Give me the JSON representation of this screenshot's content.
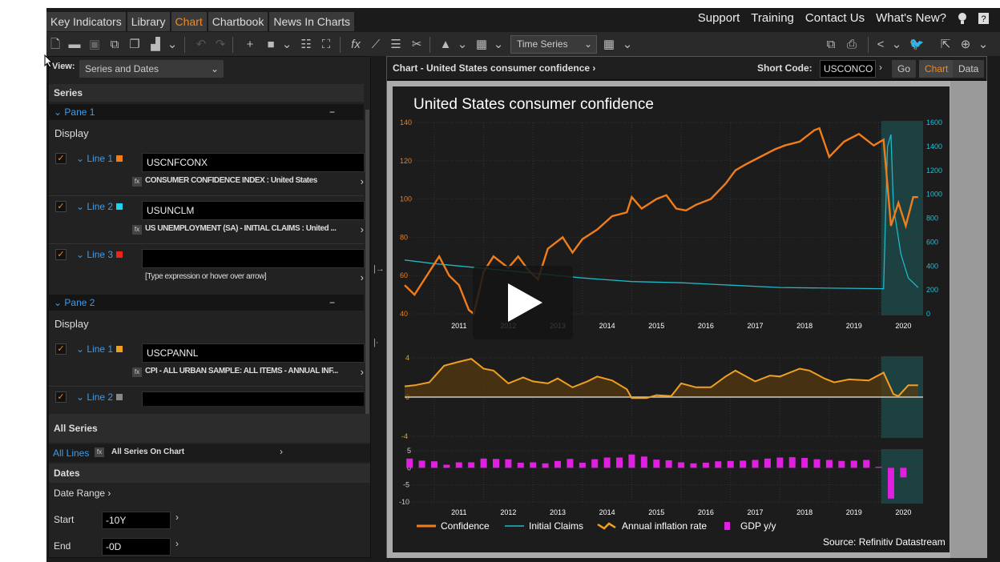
{
  "tabs": [
    "Key Indicators",
    "Library",
    "Chart",
    "Chartbook",
    "News In Charts"
  ],
  "active_tab": "Chart",
  "top_links": [
    "Support",
    "Training",
    "Contact Us",
    "What's New?"
  ],
  "toolbar": {
    "series_type": "Time Series"
  },
  "left": {
    "view_label": "View:",
    "view_value": "Series and Dates",
    "series_header": "Series",
    "panes": [
      {
        "label": "Pane 1",
        "display": "Display",
        "lines": [
          {
            "label": "Line 1",
            "color": "#f07d1a",
            "code": "USCNFCONX",
            "desc": "CONSUMER CONFIDENCE INDEX : United States"
          },
          {
            "label": "Line 2",
            "color": "#22d0f0",
            "code": "USUNCLM",
            "desc": "US UNEMPLOYMENT (SA) - INITIAL CLAIMS : United ..."
          },
          {
            "label": "Line 3",
            "color": "#e8261a",
            "code": "",
            "desc": "[Type expression or hover over arrow]"
          }
        ]
      },
      {
        "label": "Pane 2",
        "display": "Display",
        "lines": [
          {
            "label": "Line 1",
            "color": "#f0a020",
            "code": "USCPANNL",
            "desc": "CPI - ALL URBAN SAMPLE: ALL ITEMS - ANNUAL INF..."
          },
          {
            "label": "Line 2",
            "color": "#888888",
            "code": ""
          }
        ]
      }
    ],
    "all_series_header": "All Series",
    "all_lines": "All Lines",
    "all_series_desc": "All Series On Chart",
    "dates_header": "Dates",
    "date_range": "Date Range",
    "start_label": "Start",
    "start_value": "-10Y",
    "end_label": "End",
    "end_value": "-0D"
  },
  "right": {
    "title": "Chart - United States consumer confidence",
    "short_code_label": "Short Code:",
    "short_code": "USCONCO",
    "go": "Go",
    "chart": "Chart",
    "data": "Data"
  },
  "chart_data": {
    "type": "line",
    "title": "United States consumer confidence",
    "source": "Source: Refinitiv Datastream",
    "x_ticks": [
      "2011",
      "2012",
      "2013",
      "2014",
      "2015",
      "2016",
      "2017",
      "2018",
      "2019",
      "2020"
    ],
    "legend": [
      "Confidence",
      "Initial Claims",
      "Annual inflation rate",
      "GDP y/y"
    ],
    "pane1": {
      "ylim_left": [
        40,
        140
      ],
      "left_ticks": [
        "140",
        "120",
        "100",
        "80",
        "60",
        "40"
      ],
      "ylim_right": [
        0,
        1600
      ],
      "right_ticks": [
        "1600",
        "1400",
        "1200",
        "1000",
        "800",
        "600",
        "400",
        "200",
        "0"
      ],
      "confidence": [
        [
          2010.4,
          55
        ],
        [
          2010.6,
          50
        ],
        [
          2010.8,
          58
        ],
        [
          2011.1,
          70
        ],
        [
          2011.3,
          60
        ],
        [
          2011.5,
          55
        ],
        [
          2011.7,
          42
        ],
        [
          2011.8,
          40
        ],
        [
          2012.0,
          62
        ],
        [
          2012.2,
          70
        ],
        [
          2012.5,
          64
        ],
        [
          2012.7,
          70
        ],
        [
          2012.9,
          63
        ],
        [
          2013.1,
          58
        ],
        [
          2013.3,
          74
        ],
        [
          2013.6,
          80
        ],
        [
          2013.8,
          72
        ],
        [
          2014.0,
          79
        ],
        [
          2014.3,
          84
        ],
        [
          2014.6,
          91
        ],
        [
          2014.9,
          93
        ],
        [
          2015.0,
          101
        ],
        [
          2015.2,
          95
        ],
        [
          2015.5,
          100
        ],
        [
          2015.7,
          102
        ],
        [
          2015.9,
          95
        ],
        [
          2016.1,
          94
        ],
        [
          2016.3,
          97
        ],
        [
          2016.6,
          100
        ],
        [
          2016.9,
          108
        ],
        [
          2017.1,
          115
        ],
        [
          2017.3,
          118
        ],
        [
          2017.6,
          122
        ],
        [
          2017.9,
          126
        ],
        [
          2018.1,
          128
        ],
        [
          2018.4,
          130
        ],
        [
          2018.7,
          136
        ],
        [
          2018.8,
          137
        ],
        [
          2019.0,
          122
        ],
        [
          2019.3,
          130
        ],
        [
          2019.6,
          134
        ],
        [
          2019.9,
          128
        ],
        [
          2020.1,
          131
        ],
        [
          2020.25,
          86
        ],
        [
          2020.4,
          98
        ],
        [
          2020.55,
          86
        ],
        [
          2020.7,
          101
        ],
        [
          2020.8,
          101
        ]
      ],
      "initial_claims": [
        [
          2010.4,
          450
        ],
        [
          2011.0,
          420
        ],
        [
          2012.0,
          380
        ],
        [
          2013.0,
          340
        ],
        [
          2014.0,
          300
        ],
        [
          2015.0,
          270
        ],
        [
          2016.0,
          260
        ],
        [
          2017.0,
          240
        ],
        [
          2018.0,
          220
        ],
        [
          2019.0,
          215
        ],
        [
          2020.1,
          210
        ],
        [
          2020.18,
          1400
        ],
        [
          2020.25,
          1500
        ],
        [
          2020.3,
          900
        ],
        [
          2020.45,
          500
        ],
        [
          2020.6,
          300
        ],
        [
          2020.8,
          220
        ]
      ]
    },
    "pane2": {
      "ylim": [
        -4,
        4
      ],
      "ticks": [
        "4",
        "0",
        "-4"
      ],
      "inflation": [
        [
          2010.4,
          1.1
        ],
        [
          2010.6,
          1.2
        ],
        [
          2010.9,
          1.5
        ],
        [
          2011.2,
          3.2
        ],
        [
          2011.5,
          3.6
        ],
        [
          2011.75,
          3.9
        ],
        [
          2012.0,
          2.9
        ],
        [
          2012.2,
          2.7
        ],
        [
          2012.5,
          1.4
        ],
        [
          2012.8,
          2.0
        ],
        [
          2013.0,
          1.6
        ],
        [
          2013.3,
          1.4
        ],
        [
          2013.5,
          1.9
        ],
        [
          2013.8,
          1.0
        ],
        [
          2014.1,
          1.6
        ],
        [
          2014.3,
          2.1
        ],
        [
          2014.6,
          1.7
        ],
        [
          2014.9,
          0.8
        ],
        [
          2015.0,
          -0.1
        ],
        [
          2015.3,
          -0.1
        ],
        [
          2015.5,
          0.2
        ],
        [
          2015.8,
          0.1
        ],
        [
          2016.0,
          1.4
        ],
        [
          2016.3,
          1.0
        ],
        [
          2016.6,
          1.0
        ],
        [
          2016.9,
          2.1
        ],
        [
          2017.1,
          2.7
        ],
        [
          2017.5,
          1.6
        ],
        [
          2017.8,
          2.2
        ],
        [
          2018.0,
          2.1
        ],
        [
          2018.4,
          2.9
        ],
        [
          2018.6,
          2.7
        ],
        [
          2018.9,
          1.9
        ],
        [
          2019.1,
          1.5
        ],
        [
          2019.4,
          1.8
        ],
        [
          2019.8,
          1.7
        ],
        [
          2020.1,
          2.5
        ],
        [
          2020.3,
          0.3
        ],
        [
          2020.4,
          0.1
        ],
        [
          2020.6,
          1.2
        ],
        [
          2020.8,
          1.2
        ]
      ]
    },
    "pane3": {
      "ylim": [
        -10,
        5
      ],
      "ticks": [
        "5",
        "0",
        "-5",
        "-10"
      ],
      "gdp_x": [
        2010.5,
        2010.75,
        2011.0,
        2011.25,
        2011.5,
        2011.75,
        2012.0,
        2012.25,
        2012.5,
        2012.75,
        2013.0,
        2013.25,
        2013.5,
        2013.75,
        2014.0,
        2014.25,
        2014.5,
        2014.75,
        2015.0,
        2015.25,
        2015.5,
        2015.75,
        2016.0,
        2016.25,
        2016.5,
        2016.75,
        2017.0,
        2017.25,
        2017.5,
        2017.75,
        2018.0,
        2018.25,
        2018.5,
        2018.75,
        2019.0,
        2019.25,
        2019.5,
        2019.75,
        2020.0,
        2020.25,
        2020.5
      ],
      "gdp_y": [
        2.7,
        2.1,
        1.9,
        0.9,
        1.6,
        1.6,
        2.7,
        2.6,
        2.5,
        1.5,
        1.6,
        1.3,
        2.0,
        2.6,
        1.5,
        2.5,
        3.0,
        3.0,
        3.9,
        3.3,
        2.4,
        2.2,
        1.6,
        1.3,
        1.5,
        1.9,
        2.0,
        2.1,
        2.3,
        2.7,
        3.0,
        3.1,
        2.9,
        2.5,
        2.3,
        2.0,
        2.1,
        2.3,
        0.3,
        -9.0,
        -2.8
      ]
    }
  }
}
